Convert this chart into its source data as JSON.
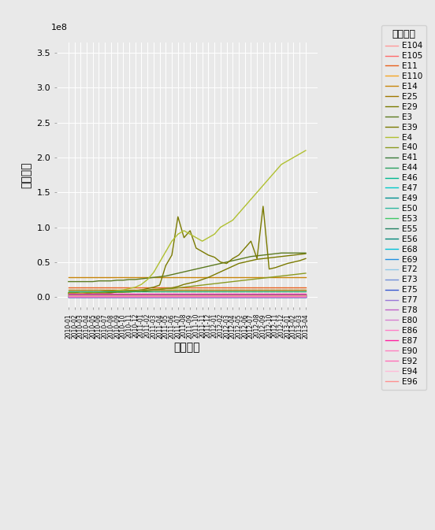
{
  "xlabel": "开票日期",
  "ylabel": "价税合计",
  "legend_title": "企业代号",
  "ylim": [
    -15000000.0,
    365000000.0
  ],
  "yticks": [
    0.0,
    50000000.0,
    100000000.0,
    150000000.0,
    200000000.0,
    250000000.0,
    300000000.0,
    350000000.0
  ],
  "ytick_labels": [
    "0.0",
    "0.5",
    "1.0",
    "1.5",
    "2.0",
    "2.5",
    "3.0",
    "3.5"
  ],
  "background_color": "#e9e9e9",
  "companies": [
    "E104",
    "E105",
    "E11",
    "E110",
    "E14",
    "E25",
    "E29",
    "E3",
    "E39",
    "E4",
    "E40",
    "E41",
    "E44",
    "E46",
    "E47",
    "E49",
    "E50",
    "E53",
    "E55",
    "E56",
    "E68",
    "E69",
    "E72",
    "E73",
    "E75",
    "E77",
    "E78",
    "E80",
    "E86",
    "E87",
    "E90",
    "E92",
    "E94",
    "E96"
  ],
  "company_colors": {
    "E104": "#FF9999",
    "E105": "#FF6B6B",
    "E11": "#E8601C",
    "E110": "#F5A623",
    "E14": "#C8860A",
    "E25": "#A07800",
    "E29": "#7A7A00",
    "E3": "#5C7A1F",
    "E39": "#7A7A00",
    "E4": "#B0C030",
    "E40": "#8B9A20",
    "E41": "#3A7A3A",
    "E44": "#28A060",
    "E46": "#00B890",
    "E47": "#00C8C8",
    "E49": "#009090",
    "E50": "#30B8A0",
    "E53": "#40C868",
    "E55": "#208060",
    "E56": "#008878",
    "E68": "#00C0D8",
    "E69": "#2090E0",
    "E72": "#90C8E8",
    "E73": "#7090D8",
    "E75": "#3858D0",
    "E77": "#9878D8",
    "E78": "#C060C8",
    "E80": "#D880D0",
    "E86": "#FF80C8",
    "E87": "#FF20A0",
    "E90": "#FF80C0",
    "E92": "#FF70B8",
    "E94": "#FFBCD8",
    "E96": "#FF9090"
  },
  "n_timepoints": 40,
  "series": {
    "E104": [
      0.007,
      0.007,
      0.007,
      0.007,
      0.007,
      0.007,
      0.007,
      0.007,
      0.007,
      0.007,
      0.007,
      0.007,
      0.007,
      0.007,
      0.007,
      0.007,
      0.007,
      0.007,
      0.007,
      0.007,
      0.007,
      0.007,
      0.007,
      0.007,
      0.007,
      0.007,
      0.007,
      0.007,
      0.007,
      0.007,
      0.007,
      0.007,
      0.007,
      0.007,
      0.007,
      0.007,
      0.007,
      0.007,
      0.007,
      0.007
    ],
    "E105": [
      0.012,
      0.012,
      0.012,
      0.012,
      0.012,
      0.012,
      0.012,
      0.012,
      0.012,
      0.012,
      0.012,
      0.012,
      0.012,
      0.012,
      0.012,
      0.012,
      0.012,
      0.012,
      0.012,
      0.012,
      0.012,
      0.012,
      0.012,
      0.012,
      0.012,
      0.012,
      0.012,
      0.012,
      0.012,
      0.012,
      0.012,
      0.012,
      0.012,
      0.012,
      0.012,
      0.012,
      0.012,
      0.012,
      0.012,
      0.012
    ],
    "E11": [
      0.14,
      0.14,
      0.14,
      0.14,
      0.14,
      0.14,
      0.14,
      0.14,
      0.14,
      0.14,
      0.14,
      0.14,
      0.14,
      0.14,
      0.14,
      0.14,
      0.14,
      0.14,
      0.14,
      0.14,
      0.14,
      0.14,
      0.14,
      0.14,
      0.14,
      0.14,
      0.14,
      0.14,
      0.14,
      0.14,
      0.14,
      0.14,
      0.14,
      0.14,
      0.14,
      0.14,
      0.14,
      0.14,
      0.14,
      0.14
    ],
    "E110": [
      0.04,
      0.04,
      0.04,
      0.04,
      0.04,
      0.04,
      0.04,
      0.04,
      0.04,
      0.04,
      0.04,
      0.04,
      0.04,
      0.04,
      0.04,
      0.04,
      0.04,
      0.04,
      0.04,
      0.04,
      0.04,
      0.04,
      0.04,
      0.04,
      0.04,
      0.04,
      0.04,
      0.04,
      0.04,
      0.04,
      0.04,
      0.04,
      0.04,
      0.04,
      0.04,
      0.04,
      0.04,
      0.04,
      0.04,
      0.04
    ],
    "E14": [
      0.28,
      0.28,
      0.28,
      0.28,
      0.28,
      0.28,
      0.28,
      0.28,
      0.28,
      0.28,
      0.28,
      0.28,
      0.28,
      0.28,
      0.28,
      0.28,
      0.28,
      0.28,
      0.28,
      0.28,
      0.28,
      0.28,
      0.28,
      0.28,
      0.28,
      0.28,
      0.28,
      0.28,
      0.28,
      0.28,
      0.28,
      0.28,
      0.28,
      0.28,
      0.28,
      0.28,
      0.28,
      0.28,
      0.28,
      0.28
    ],
    "E25": [
      0.1,
      0.1,
      0.1,
      0.1,
      0.1,
      0.1,
      0.1,
      0.1,
      0.1,
      0.1,
      0.1,
      0.1,
      0.1,
      0.1,
      0.1,
      0.1,
      0.1,
      0.1,
      0.1,
      0.1,
      0.1,
      0.1,
      0.1,
      0.1,
      0.1,
      0.1,
      0.1,
      0.1,
      0.1,
      0.1,
      0.1,
      0.1,
      0.1,
      0.1,
      0.1,
      0.1,
      0.1,
      0.1,
      0.1,
      0.1
    ],
    "E29": [
      0.05,
      0.05,
      0.05,
      0.05,
      0.06,
      0.06,
      0.06,
      0.06,
      0.07,
      0.07,
      0.07,
      0.08,
      0.08,
      0.09,
      0.1,
      0.11,
      0.12,
      0.13,
      0.15,
      0.18,
      0.2,
      0.22,
      0.25,
      0.28,
      0.32,
      0.36,
      0.4,
      0.44,
      0.48,
      0.5,
      0.52,
      0.54,
      0.55,
      0.56,
      0.57,
      0.58,
      0.59,
      0.6,
      0.61,
      0.62
    ],
    "E3": [
      0.22,
      0.22,
      0.22,
      0.22,
      0.22,
      0.23,
      0.23,
      0.23,
      0.24,
      0.24,
      0.25,
      0.25,
      0.26,
      0.27,
      0.28,
      0.29,
      0.3,
      0.32,
      0.34,
      0.36,
      0.38,
      0.4,
      0.42,
      0.44,
      0.46,
      0.48,
      0.5,
      0.52,
      0.54,
      0.56,
      0.58,
      0.59,
      0.6,
      0.61,
      0.62,
      0.63,
      0.63,
      0.63,
      0.63,
      0.63
    ],
    "E39": [
      0.05,
      0.05,
      0.05,
      0.05,
      0.06,
      0.06,
      0.06,
      0.06,
      0.07,
      0.07,
      0.08,
      0.09,
      0.1,
      0.12,
      0.14,
      0.17,
      0.45,
      0.6,
      1.15,
      0.85,
      0.95,
      0.7,
      0.65,
      0.6,
      0.57,
      0.5,
      0.48,
      0.55,
      0.6,
      0.7,
      0.8,
      0.55,
      1.3,
      0.4,
      0.42,
      0.45,
      0.48,
      0.5,
      0.52,
      0.55
    ],
    "E4": [
      0.05,
      0.05,
      0.05,
      0.06,
      0.06,
      0.07,
      0.07,
      0.08,
      0.09,
      0.1,
      0.12,
      0.14,
      0.18,
      0.25,
      0.35,
      0.5,
      0.65,
      0.8,
      0.9,
      0.95,
      0.9,
      0.85,
      0.8,
      0.85,
      0.9,
      1.0,
      1.05,
      1.1,
      1.2,
      1.3,
      1.4,
      1.5,
      1.6,
      1.7,
      1.8,
      1.9,
      1.95,
      2.0,
      2.05,
      2.1
    ],
    "E40": [
      0.06,
      0.06,
      0.07,
      0.07,
      0.07,
      0.07,
      0.08,
      0.08,
      0.08,
      0.09,
      0.09,
      0.09,
      0.1,
      0.1,
      0.11,
      0.11,
      0.12,
      0.12,
      0.13,
      0.14,
      0.15,
      0.16,
      0.17,
      0.18,
      0.19,
      0.2,
      0.21,
      0.22,
      0.23,
      0.24,
      0.25,
      0.26,
      0.27,
      0.28,
      0.29,
      0.3,
      0.31,
      0.32,
      0.33,
      0.34
    ],
    "E41": [
      0.025,
      0.025,
      0.025,
      0.025,
      0.025,
      0.025,
      0.025,
      0.025,
      0.025,
      0.025,
      0.025,
      0.025,
      0.025,
      0.025,
      0.025,
      0.025,
      0.025,
      0.025,
      0.025,
      0.025,
      0.025,
      0.025,
      0.025,
      0.025,
      0.025,
      0.025,
      0.025,
      0.025,
      0.025,
      0.025,
      0.025,
      0.025,
      0.025,
      0.025,
      0.025,
      0.025,
      0.025,
      0.025,
      0.025,
      0.025
    ],
    "E44": [
      0.08,
      0.08,
      0.08,
      0.08,
      0.08,
      0.08,
      0.08,
      0.08,
      0.08,
      0.08,
      0.08,
      0.08,
      0.08,
      0.08,
      0.08,
      0.08,
      0.08,
      0.08,
      0.08,
      0.08,
      0.08,
      0.08,
      0.08,
      0.08,
      0.08,
      0.08,
      0.08,
      0.08,
      0.08,
      0.08,
      0.08,
      0.08,
      0.08,
      0.08,
      0.08,
      0.08,
      0.08,
      0.08,
      0.08,
      0.08
    ],
    "E46": [
      0.018,
      0.018,
      0.018,
      0.018,
      0.018,
      0.018,
      0.018,
      0.018,
      0.018,
      0.018,
      0.018,
      0.018,
      0.018,
      0.018,
      0.018,
      0.018,
      0.018,
      0.018,
      0.018,
      0.018,
      0.018,
      0.018,
      0.018,
      0.018,
      0.018,
      0.018,
      0.018,
      0.018,
      0.018,
      0.018,
      0.018,
      0.018,
      0.018,
      0.018,
      0.018,
      0.018,
      0.018,
      0.018,
      0.018,
      0.018
    ],
    "E47": [
      0.005,
      0.005,
      0.005,
      0.005,
      0.005,
      0.005,
      0.005,
      0.005,
      0.005,
      0.005,
      0.005,
      0.005,
      0.005,
      0.005,
      0.005,
      0.005,
      0.005,
      0.005,
      0.005,
      0.005,
      0.005,
      0.005,
      0.005,
      0.005,
      0.005,
      0.005,
      0.005,
      0.005,
      0.005,
      0.005,
      0.005,
      0.005,
      0.005,
      0.005,
      0.005,
      0.005,
      0.005,
      0.005,
      0.005,
      0.005
    ],
    "E49": [
      0.003,
      0.003,
      0.003,
      0.003,
      0.003,
      0.003,
      0.003,
      0.003,
      0.003,
      0.003,
      0.003,
      0.003,
      0.003,
      0.003,
      0.003,
      0.003,
      0.003,
      0.003,
      0.003,
      0.003,
      0.003,
      0.003,
      0.003,
      0.003,
      0.003,
      0.003,
      0.003,
      0.003,
      0.003,
      0.003,
      0.003,
      0.003,
      0.003,
      0.003,
      0.003,
      0.003,
      0.003,
      0.003,
      0.003,
      0.003
    ],
    "E50": [
      0.015,
      0.015,
      0.015,
      0.015,
      0.015,
      0.015,
      0.015,
      0.015,
      0.015,
      0.015,
      0.015,
      0.015,
      0.015,
      0.015,
      0.015,
      0.015,
      0.015,
      0.015,
      0.015,
      0.015,
      0.015,
      0.015,
      0.015,
      0.015,
      0.015,
      0.015,
      0.015,
      0.015,
      0.015,
      0.015,
      0.015,
      0.015,
      0.015,
      0.015,
      0.015,
      0.015,
      0.015,
      0.015,
      0.015,
      0.015
    ],
    "E53": [
      0.022,
      0.022,
      0.022,
      0.022,
      0.022,
      0.022,
      0.022,
      0.022,
      0.022,
      0.022,
      0.022,
      0.022,
      0.022,
      0.022,
      0.022,
      0.022,
      0.022,
      0.022,
      0.022,
      0.022,
      0.022,
      0.022,
      0.022,
      0.022,
      0.022,
      0.022,
      0.022,
      0.022,
      0.022,
      0.022,
      0.022,
      0.022,
      0.022,
      0.022,
      0.022,
      0.022,
      0.022,
      0.022,
      0.022,
      0.022
    ],
    "E55": [
      0.028,
      0.028,
      0.028,
      0.028,
      0.028,
      0.028,
      0.028,
      0.028,
      0.028,
      0.028,
      0.028,
      0.028,
      0.028,
      0.028,
      0.028,
      0.028,
      0.028,
      0.028,
      0.028,
      0.028,
      0.028,
      0.028,
      0.028,
      0.028,
      0.028,
      0.028,
      0.028,
      0.028,
      0.028,
      0.028,
      0.028,
      0.028,
      0.028,
      0.028,
      0.028,
      0.028,
      0.028,
      0.028,
      0.028,
      0.028
    ],
    "E56": [
      0.035,
      0.035,
      0.035,
      0.035,
      0.035,
      0.035,
      0.035,
      0.035,
      0.035,
      0.035,
      0.035,
      0.035,
      0.035,
      0.035,
      0.035,
      0.035,
      0.035,
      0.035,
      0.035,
      0.035,
      0.035,
      0.035,
      0.035,
      0.035,
      0.035,
      0.035,
      0.035,
      0.035,
      0.035,
      0.035,
      0.035,
      0.035,
      0.035,
      0.035,
      0.035,
      0.035,
      0.035,
      0.035,
      0.035,
      0.035
    ],
    "E68": [
      0.01,
      0.01,
      0.01,
      0.01,
      0.01,
      0.01,
      0.01,
      0.01,
      0.01,
      0.01,
      0.01,
      0.01,
      0.01,
      0.01,
      0.01,
      0.01,
      0.01,
      0.01,
      0.01,
      0.01,
      0.01,
      0.01,
      0.01,
      0.01,
      0.01,
      0.01,
      0.01,
      0.01,
      0.01,
      0.01,
      0.01,
      0.01,
      0.01,
      0.01,
      0.01,
      0.01,
      0.01,
      0.01,
      0.01,
      0.01
    ],
    "E69": [
      0.013,
      0.013,
      0.013,
      0.013,
      0.013,
      0.013,
      0.013,
      0.013,
      0.013,
      0.013,
      0.013,
      0.013,
      0.013,
      0.013,
      0.013,
      0.013,
      0.013,
      0.013,
      0.013,
      0.013,
      0.013,
      0.013,
      0.013,
      0.013,
      0.013,
      0.013,
      0.013,
      0.013,
      0.013,
      0.013,
      0.013,
      0.013,
      0.013,
      0.013,
      0.013,
      0.013,
      0.013,
      0.013,
      0.013,
      0.013
    ],
    "E72": [
      0.008,
      0.008,
      0.008,
      0.008,
      0.008,
      0.008,
      0.008,
      0.008,
      0.008,
      0.008,
      0.008,
      0.008,
      0.008,
      0.008,
      0.008,
      0.008,
      0.008,
      0.008,
      0.008,
      0.008,
      0.008,
      0.008,
      0.008,
      0.008,
      0.008,
      0.008,
      0.008,
      0.008,
      0.008,
      0.008,
      0.008,
      0.008,
      0.008,
      0.008,
      0.008,
      0.008,
      0.008,
      0.008,
      0.008,
      0.008
    ],
    "E73": [
      0.006,
      0.006,
      0.006,
      0.006,
      0.006,
      0.006,
      0.006,
      0.006,
      0.006,
      0.006,
      0.006,
      0.006,
      0.006,
      0.006,
      0.006,
      0.006,
      0.006,
      0.006,
      0.006,
      0.006,
      0.006,
      0.006,
      0.006,
      0.006,
      0.006,
      0.006,
      0.006,
      0.006,
      0.006,
      0.006,
      0.006,
      0.006,
      0.006,
      0.006,
      0.006,
      0.006,
      0.006,
      0.006,
      0.006,
      0.006
    ],
    "E75": [
      0.004,
      0.004,
      0.004,
      0.004,
      0.004,
      0.004,
      0.004,
      0.004,
      0.004,
      0.004,
      0.004,
      0.004,
      0.004,
      0.004,
      0.004,
      0.004,
      0.004,
      0.004,
      0.004,
      0.004,
      0.004,
      0.004,
      0.004,
      0.004,
      0.004,
      0.004,
      0.004,
      0.004,
      0.004,
      0.004,
      0.004,
      0.004,
      0.004,
      0.004,
      0.004,
      0.004,
      0.004,
      0.004,
      0.004,
      0.004
    ],
    "E77": [
      0.005,
      0.005,
      0.005,
      0.005,
      0.005,
      0.005,
      0.005,
      0.005,
      0.005,
      0.005,
      0.005,
      0.005,
      0.005,
      0.005,
      0.005,
      0.005,
      0.005,
      0.005,
      0.005,
      0.005,
      0.005,
      0.005,
      0.005,
      0.005,
      0.005,
      0.005,
      0.005,
      0.005,
      0.005,
      0.005,
      0.005,
      0.005,
      0.005,
      0.005,
      0.005,
      0.005,
      0.005,
      0.005,
      0.005,
      0.005
    ],
    "E78": [
      0.006,
      0.006,
      0.006,
      0.006,
      0.006,
      0.006,
      0.006,
      0.006,
      0.006,
      0.006,
      0.006,
      0.006,
      0.006,
      0.006,
      0.006,
      0.006,
      0.006,
      0.006,
      0.006,
      0.006,
      0.006,
      0.006,
      0.006,
      0.006,
      0.006,
      0.006,
      0.006,
      0.006,
      0.006,
      0.006,
      0.006,
      0.006,
      0.006,
      0.006,
      0.006,
      0.006,
      0.006,
      0.006,
      0.006,
      0.006
    ],
    "E80": [
      0.007,
      0.007,
      0.007,
      0.007,
      0.007,
      0.007,
      0.007,
      0.007,
      0.007,
      0.007,
      0.007,
      0.007,
      0.007,
      0.007,
      0.007,
      0.007,
      0.007,
      0.007,
      0.007,
      0.007,
      0.007,
      0.007,
      0.007,
      0.007,
      0.007,
      0.007,
      0.007,
      0.007,
      0.007,
      0.007,
      0.007,
      0.007,
      0.007,
      0.007,
      0.007,
      0.007,
      0.007,
      0.007,
      0.007,
      0.007
    ],
    "E86": [
      0.009,
      0.009,
      0.009,
      0.009,
      0.009,
      0.009,
      0.009,
      0.009,
      0.009,
      0.009,
      0.009,
      0.009,
      0.009,
      0.009,
      0.009,
      0.009,
      0.009,
      0.009,
      0.009,
      0.009,
      0.009,
      0.009,
      0.009,
      0.009,
      0.009,
      0.009,
      0.009,
      0.009,
      0.009,
      0.009,
      0.009,
      0.009,
      0.009,
      0.009,
      0.009,
      0.009,
      0.009,
      0.009,
      0.009,
      0.009
    ],
    "E87": [
      0.05,
      0.05,
      0.05,
      0.05,
      0.05,
      0.05,
      0.05,
      0.05,
      0.05,
      0.05,
      0.05,
      0.05,
      0.05,
      0.05,
      0.05,
      0.05,
      0.05,
      0.05,
      0.05,
      0.05,
      0.05,
      0.05,
      0.05,
      0.05,
      0.05,
      0.05,
      0.05,
      0.05,
      0.05,
      0.05,
      0.05,
      0.05,
      0.05,
      0.05,
      0.05,
      0.05,
      0.05,
      0.05,
      0.05,
      0.05
    ],
    "E90": [
      0.011,
      0.011,
      0.011,
      0.011,
      0.011,
      0.011,
      0.011,
      0.011,
      0.011,
      0.011,
      0.011,
      0.011,
      0.011,
      0.011,
      0.011,
      0.011,
      0.011,
      0.011,
      0.011,
      0.011,
      0.011,
      0.011,
      0.011,
      0.011,
      0.011,
      0.011,
      0.011,
      0.011,
      0.011,
      0.011,
      0.011,
      0.011,
      0.011,
      0.011,
      0.011,
      0.011,
      0.011,
      0.011,
      0.011,
      0.011
    ],
    "E92": [
      0.016,
      0.016,
      0.016,
      0.016,
      0.016,
      0.016,
      0.016,
      0.016,
      0.016,
      0.016,
      0.016,
      0.016,
      0.016,
      0.016,
      0.016,
      0.016,
      0.016,
      0.016,
      0.016,
      0.016,
      0.016,
      0.016,
      0.016,
      0.016,
      0.016,
      0.016,
      0.016,
      0.016,
      0.016,
      0.016,
      0.016,
      0.016,
      0.016,
      0.016,
      0.016,
      0.016,
      0.016,
      0.016,
      0.016,
      0.016
    ],
    "E94": [
      0.02,
      0.02,
      0.02,
      0.02,
      0.02,
      0.02,
      0.02,
      0.02,
      0.02,
      0.02,
      0.02,
      0.02,
      0.02,
      0.02,
      0.02,
      0.02,
      0.02,
      0.02,
      0.02,
      0.02,
      0.02,
      0.02,
      0.02,
      0.02,
      0.02,
      0.02,
      0.02,
      0.02,
      0.02,
      0.02,
      0.02,
      0.02,
      0.02,
      0.02,
      0.02,
      0.02,
      0.02,
      0.02,
      0.02,
      0.02
    ],
    "E96": [
      0.019,
      0.019,
      0.019,
      0.019,
      0.019,
      0.019,
      0.019,
      0.019,
      0.019,
      0.019,
      0.019,
      0.019,
      0.019,
      0.019,
      0.019,
      0.019,
      0.019,
      0.019,
      0.019,
      0.019,
      0.019,
      0.019,
      0.019,
      0.019,
      0.019,
      0.019,
      0.019,
      0.019,
      0.019,
      0.019,
      0.019,
      0.019,
      0.019,
      0.019,
      0.019,
      0.019,
      0.019,
      0.019,
      0.019,
      0.019
    ]
  },
  "xtick_labels": [
    "2010-01",
    "2010-02",
    "2010-03",
    "2010-04",
    "2010-05",
    "2010-06",
    "2010-07",
    "2010-08",
    "2010-09",
    "2010-10",
    "2010-11",
    "2010-12",
    "2011-01",
    "2011-02",
    "2011-03",
    "2011-04",
    "2011-05",
    "2011-06",
    "2011-07",
    "2011-08",
    "2011-09",
    "2011-10",
    "2011-11",
    "2011-12",
    "2012-01",
    "2012-02",
    "2012-03",
    "2012-04",
    "2012-05",
    "2012-06",
    "2012-07",
    "2012-08",
    "2012-09",
    "2012-10",
    "2012-11",
    "2012-12",
    "2013-01",
    "2013-02",
    "2013-03",
    "2013-04"
  ]
}
